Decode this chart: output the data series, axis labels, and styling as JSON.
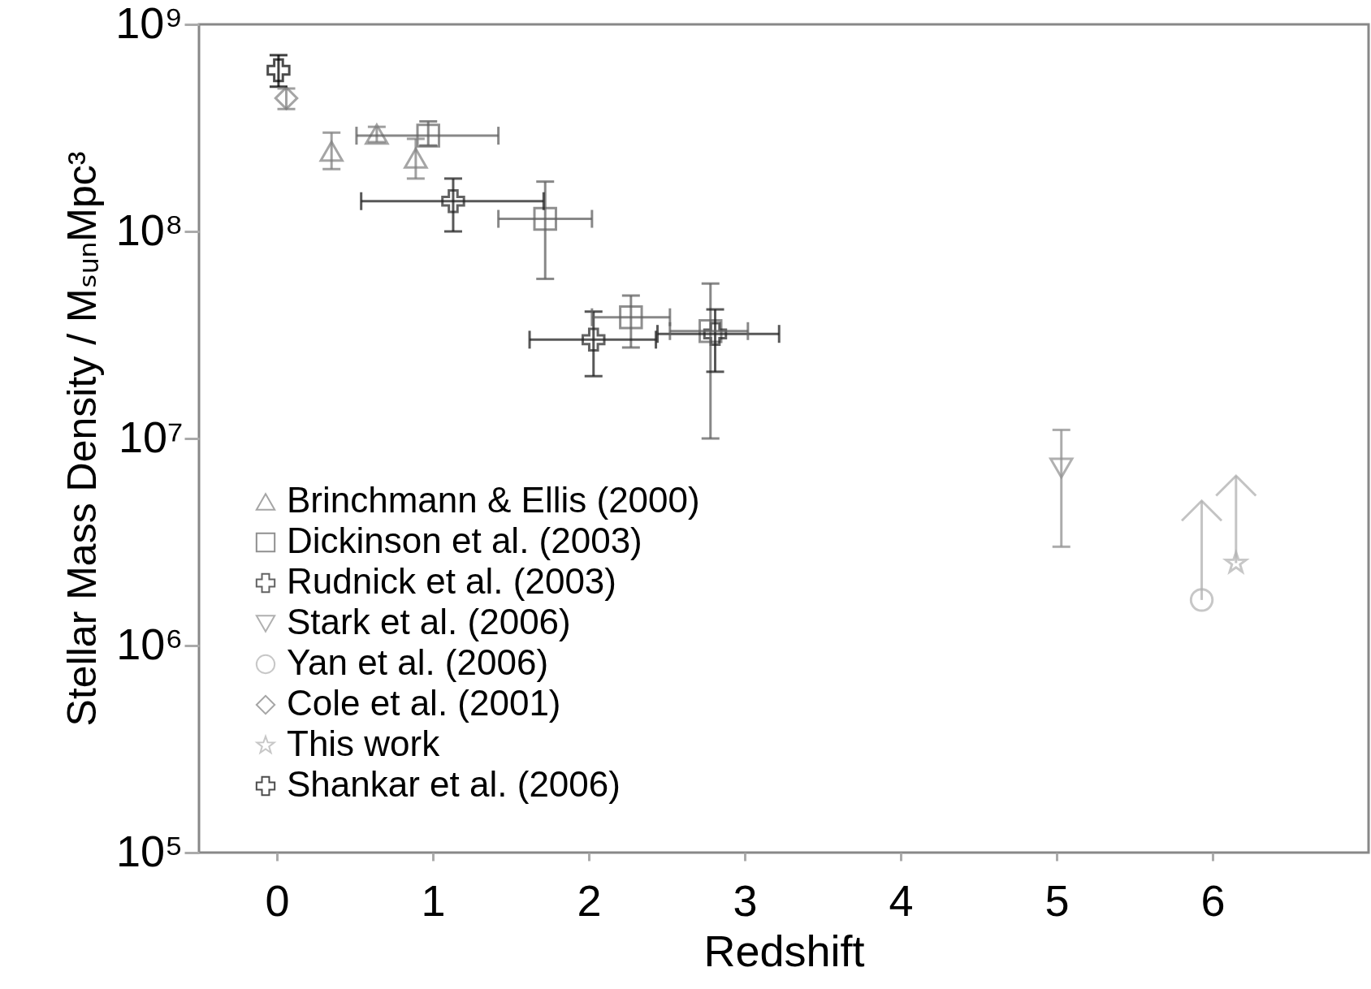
{
  "chart_data": {
    "type": "scatter",
    "xlabel": "Redshift",
    "ylabel": "Stellar Mass Density / MₛᵤₙMpc³",
    "log": "y",
    "grid": false,
    "legend": "bottom left",
    "xlim": [
      -0.5,
      7
    ],
    "xticks": [
      0,
      1,
      2,
      3,
      4,
      5,
      6
    ],
    "ylim": [
      100000,
      1000000000
    ],
    "yticks": [
      {
        "value": 100000,
        "label": "10⁵"
      },
      {
        "value": 1000000,
        "label": "10⁶"
      },
      {
        "value": 10000000,
        "label": "10⁷"
      },
      {
        "value": 100000000,
        "label": "10⁸"
      },
      {
        "value": 1000000000,
        "label": "10⁹"
      }
    ],
    "series": [
      {
        "name": "Brinchmann & Ellis (2000)",
        "color": "#808080",
        "marker": "triangle",
        "x": [
          0.35,
          0.64,
          0.89
        ],
        "values": [
          244000000,
          295000000,
          226000000
        ],
        "errors": [
          [
            200000000,
            300000000
          ],
          [
            270000000,
            320000000
          ],
          [
            180000000,
            280000000
          ]
        ]
      },
      {
        "name": "Dickinson et al. (2003)",
        "color": "#606060",
        "marker": "square",
        "x": [
          0.97,
          1.72,
          2.27,
          2.78
        ],
        "values": [
          290000000,
          115000000,
          38500000,
          33000000
        ],
        "errors": [
          [
            260000000,
            340000000
          ],
          [
            59000000,
            174000000
          ],
          [
            27500000,
            49000000
          ],
          [
            10000000,
            56000000
          ]
        ],
        "xerrors": [
          [
            0.51,
            1.42
          ],
          [
            1.42,
            2.02
          ],
          [
            2.02,
            2.52
          ],
          [
            2.52,
            3.02
          ]
        ]
      },
      {
        "name": "Rudnick et al. (2003)",
        "color": "#202020",
        "marker": "cross",
        "x": [
          1.13,
          2.03,
          2.81
        ],
        "values": [
          140000000,
          30000000,
          32000000
        ],
        "errors": [
          [
            100000000,
            180000000
          ],
          [
            20000000,
            41000000
          ],
          [
            21000000,
            42000000
          ]
        ],
        "xerrors": [
          [
            0.54,
            1.71
          ],
          [
            1.62,
            2.43
          ],
          [
            2.44,
            3.22
          ]
        ]
      },
      {
        "name": "Stark et al. (2006)",
        "color": "#909090",
        "marker": "triangle-down",
        "x": [
          5.03
        ],
        "values": [
          7200000
        ],
        "errors": [
          [
            3000000,
            11000000
          ]
        ]
      },
      {
        "name": "Yan et al. (2006)",
        "color": "#b0b0b0",
        "marker": "circle",
        "x": [
          5.93
        ],
        "values": [
          1660000
        ],
        "errors": [
          [
            1660000,
            5000000
          ]
        ]
      },
      {
        "name": "Cole et al. (2001)",
        "color": "#808080",
        "marker": "diamond",
        "x": [
          0.06
        ],
        "values": [
          440000000
        ],
        "errors": [
          [
            390000000,
            490000000
          ]
        ]
      },
      {
        "name": "This work",
        "color": "#b0b0b0",
        "marker": "star",
        "x": [
          6.15
        ],
        "values": [
          2500000
        ],
        "errors": [
          [
            2500000,
            6600000
          ]
        ]
      },
      {
        "name": "Shankar et al. (2006)",
        "color": "#000000",
        "marker": "cross",
        "x": [
          0.01
        ],
        "values": [
          600000000
        ],
        "errors": [
          [
            500000000,
            710000000
          ]
        ]
      }
    ]
  }
}
